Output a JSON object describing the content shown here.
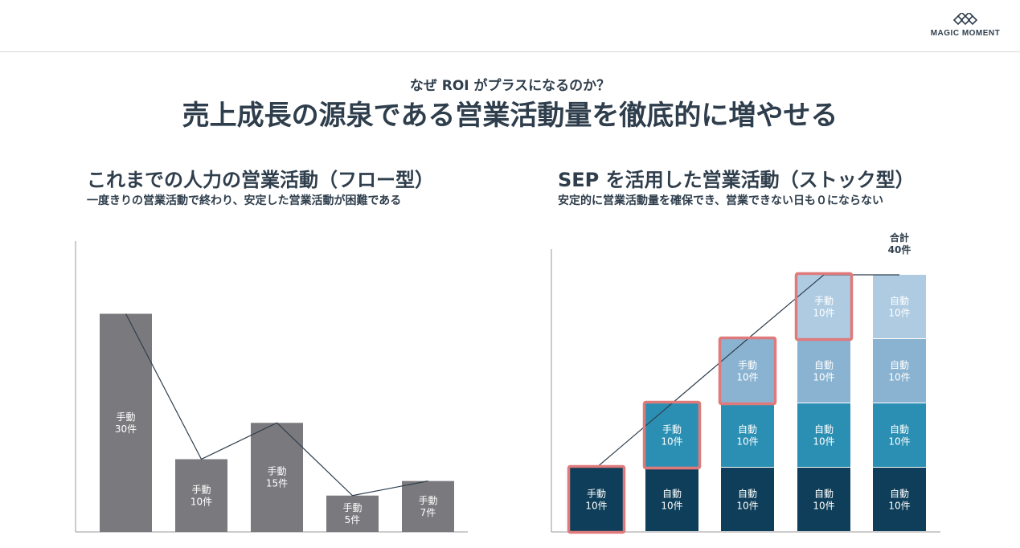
{
  "logo": {
    "text": "MAGIC MOMENT"
  },
  "supertitle": "なぜ ROI がプラスになるのか？",
  "title": "売上成長の源泉である営業活動量を徹底的に増やせる",
  "chart_data": [
    {
      "type": "bar",
      "title": "これまでの人力の営業活動（フロー型）",
      "subtitle": "一度きりの営業活動で終わり、安定した営業活動が困難である",
      "categories": [
        "",
        "",
        "",
        "",
        ""
      ],
      "series": [
        {
          "name": "手動",
          "values": [
            30,
            10,
            15,
            5,
            7
          ]
        }
      ],
      "data_labels": [
        [
          "手動",
          "30件"
        ],
        [
          "手動",
          "10件"
        ],
        [
          "手動",
          "15件"
        ],
        [
          "手動",
          "5件"
        ],
        [
          "手動",
          "7件"
        ]
      ],
      "line_values": [
        30,
        10,
        15,
        5,
        7
      ],
      "ylim": [
        0,
        40
      ],
      "colors": {
        "bar": "#7a7a7e",
        "line": "#2f3e4c",
        "label": "#ffffff",
        "axis": "#999999"
      }
    },
    {
      "type": "bar",
      "stacked": true,
      "title": "SEP を活用した営業活動（ストック型）",
      "subtitle": "安定的に営業活動量を確保でき、営業できない日も０にならない",
      "categories": [
        "",
        "",
        "",
        "",
        ""
      ],
      "series": [
        {
          "name": "",
          "values": [
            10,
            10,
            10,
            10,
            10
          ],
          "color": "#0e3e59"
        },
        {
          "name": "",
          "values": [
            0,
            10,
            10,
            10,
            10
          ],
          "color": "#2b8fb3"
        },
        {
          "name": "",
          "values": [
            0,
            0,
            10,
            10,
            10
          ],
          "color": "#8ab3d1"
        },
        {
          "name": "",
          "values": [
            0,
            0,
            0,
            10,
            10
          ],
          "color": "#aecbe2"
        }
      ],
      "segment_labels": [
        [
          [
            "手動",
            "10件"
          ]
        ],
        [
          [
            "自動",
            "10件"
          ],
          [
            "手動",
            "10件"
          ]
        ],
        [
          [
            "自動",
            "10件"
          ],
          [
            "自動",
            "10件"
          ],
          [
            "手動",
            "10件"
          ]
        ],
        [
          [
            "自動",
            "10件"
          ],
          [
            "自動",
            "10件"
          ],
          [
            "自動",
            "10件"
          ],
          [
            "手動",
            "10件"
          ]
        ],
        [
          [
            "自動",
            "10件"
          ],
          [
            "自動",
            "10件"
          ],
          [
            "自動",
            "10件"
          ],
          [
            "自動",
            "10件"
          ]
        ]
      ],
      "highlighted": [
        [
          0,
          0
        ],
        [
          1,
          1
        ],
        [
          2,
          2
        ],
        [
          3,
          3
        ]
      ],
      "total_label": [
        "合計",
        "40件"
      ],
      "line_values": [
        10,
        20,
        30,
        40,
        40
      ],
      "ylim": [
        0,
        44
      ],
      "colors": {
        "highlight": "#e07a7a",
        "line": "#2f3e4c",
        "label": "#ffffff",
        "axis": "#999999"
      }
    }
  ]
}
